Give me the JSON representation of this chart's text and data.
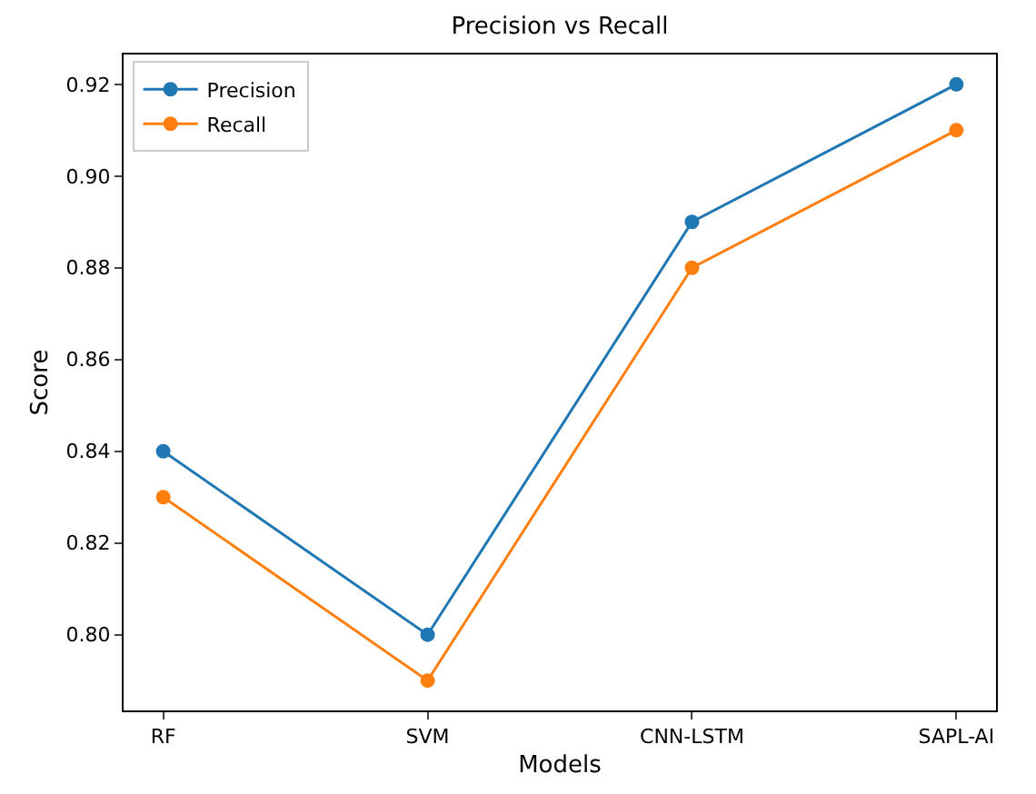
{
  "chart_data": {
    "type": "line",
    "title": "Precision vs Recall",
    "xlabel": "Models",
    "ylabel": "Score",
    "categories": [
      "RF",
      "SVM",
      "CNN-LSTM",
      "SAPL-AI"
    ],
    "series": [
      {
        "name": "Precision",
        "color": "#1f77b4",
        "values": [
          0.84,
          0.8,
          0.89,
          0.92
        ]
      },
      {
        "name": "Recall",
        "color": "#ff7f0e",
        "values": [
          0.83,
          0.79,
          0.88,
          0.91
        ]
      }
    ],
    "ylim": [
      0.7835,
      0.9265
    ],
    "yticks": [
      {
        "value": 0.8,
        "label": "0.80"
      },
      {
        "value": 0.82,
        "label": "0.82"
      },
      {
        "value": 0.84,
        "label": "0.84"
      },
      {
        "value": 0.86,
        "label": "0.86"
      },
      {
        "value": 0.88,
        "label": "0.88"
      },
      {
        "value": 0.9,
        "label": "0.90"
      },
      {
        "value": 0.92,
        "label": "0.92"
      }
    ],
    "legend": "top left",
    "marker": "circle",
    "line_style": "solid"
  }
}
